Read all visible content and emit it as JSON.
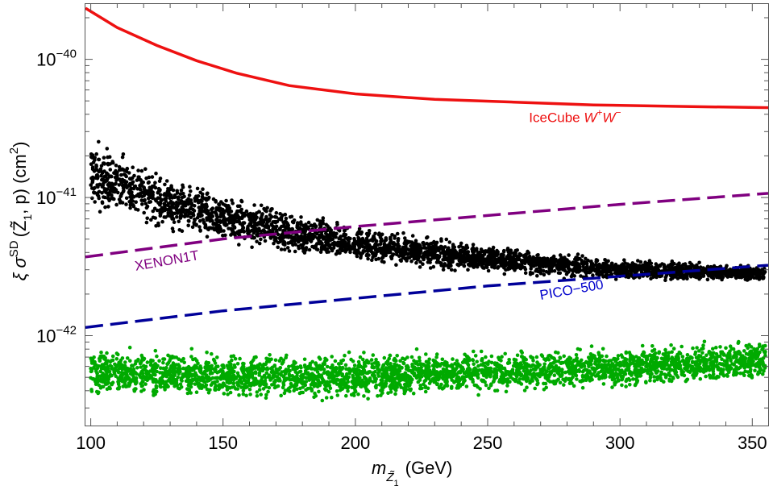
{
  "chart_data": {
    "type": "scatter",
    "title": "",
    "xlabel": {
      "main": "m",
      "sub": "Z̃",
      "subsub": "1",
      "unit": "(GeV)"
    },
    "ylabel": {
      "main": "ξ σ",
      "sup": "SD",
      "args": "(Z̃",
      "argsub": "1",
      "rest": ", p) (cm",
      "unitsup": "2",
      "close": ")"
    },
    "xlim": [
      98,
      356
    ],
    "ylim_log10": [
      -42.65,
      -39.6
    ],
    "yscale": "log",
    "xticks": [
      100,
      150,
      200,
      250,
      300,
      350
    ],
    "xtick_labels": [
      "100",
      "150",
      "200",
      "250",
      "300",
      "350"
    ],
    "yticks_log10": [
      -42,
      -41,
      -40
    ],
    "ytick_labels": [
      {
        "base": "10",
        "exp": "−42"
      },
      {
        "base": "10",
        "exp": "−41"
      },
      {
        "base": "10",
        "exp": "−40"
      }
    ],
    "series": [
      {
        "name": "IceCube W+W−",
        "kind": "line",
        "color": "#ee1111",
        "dash": "solid",
        "x": [
          98,
          110,
          125,
          140,
          155,
          175,
          200,
          230,
          260,
          290,
          320,
          356
        ],
        "y_log10": [
          -39.63,
          -39.77,
          -39.9,
          -40.01,
          -40.1,
          -40.19,
          -40.25,
          -40.29,
          -40.31,
          -40.33,
          -40.34,
          -40.35
        ]
      },
      {
        "name": "XENON1T",
        "kind": "line",
        "color": "#800080",
        "dash": "dashed",
        "x": [
          98,
          150,
          200,
          250,
          300,
          356
        ],
        "y_log10": [
          -41.43,
          -41.3,
          -41.21,
          -41.13,
          -41.05,
          -40.97
        ]
      },
      {
        "name": "PICO-500",
        "kind": "line",
        "color": "#000099",
        "dash": "dashed",
        "x": [
          98,
          150,
          200,
          250,
          300,
          356
        ],
        "y_log10": [
          -41.94,
          -41.82,
          -41.73,
          -41.64,
          -41.57,
          -41.49
        ]
      },
      {
        "name": "Black points (band)",
        "kind": "band",
        "color": "#000000",
        "x": [
          100,
          125,
          150,
          175,
          200,
          225,
          250,
          275,
          300,
          325,
          355
        ],
        "y_lo_log10": [
          -41.13,
          -41.27,
          -41.37,
          -41.44,
          -41.49,
          -41.53,
          -41.56,
          -41.59,
          -41.61,
          -41.61,
          -41.62
        ],
        "y_hi_log10": [
          -40.53,
          -40.77,
          -40.93,
          -41.07,
          -41.18,
          -41.26,
          -41.33,
          -41.38,
          -41.43,
          -41.45,
          -41.49
        ]
      },
      {
        "name": "Green points (band)",
        "kind": "band",
        "color": "#00aa00",
        "x": [
          100,
          150,
          200,
          250,
          300,
          355
        ],
        "y_lo_log10": [
          -42.47,
          -42.49,
          -42.48,
          -42.44,
          -42.41,
          -42.35
        ],
        "y_hi_log10": [
          -42.05,
          -42.1,
          -42.1,
          -42.08,
          -42.05,
          -42.0
        ]
      }
    ],
    "annotations": [
      {
        "text_parts": [
          "IceCube ",
          "W",
          "+",
          "W",
          "−"
        ],
        "color": "#ee1111",
        "x": 290,
        "y_log10": -40.35
      },
      {
        "text": "XENON1T",
        "color": "#800080",
        "x": 117,
        "y_log10": -41.53,
        "angle": -10
      },
      {
        "text": "PICO−500",
        "color": "#0000cc",
        "x": 270,
        "y_log10": -41.74,
        "angle": -10
      }
    ]
  }
}
